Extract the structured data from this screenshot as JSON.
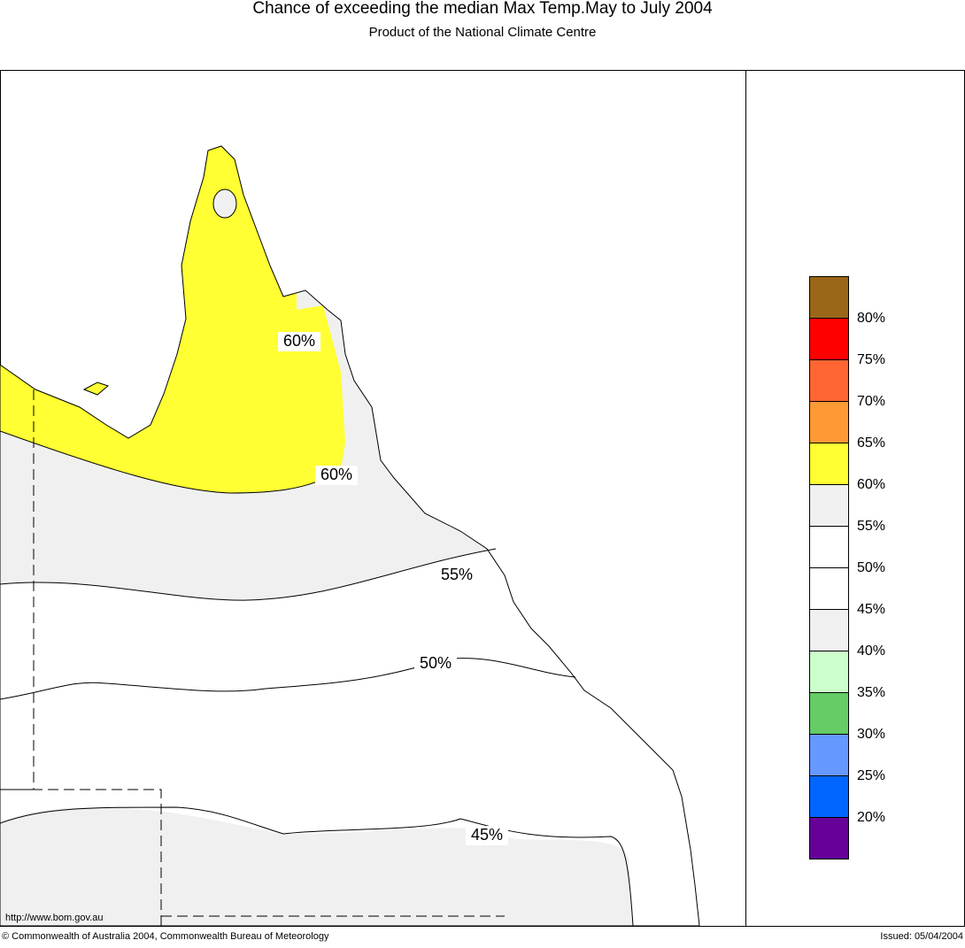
{
  "header": {
    "title": "Chance of exceeding the median Max Temp.May to July 2004",
    "subtitle": "Product of the National Climate Centre"
  },
  "map": {
    "url": "http://www.bom.gov.au",
    "contour_labels": [
      "60%",
      "60%",
      "55%",
      "50%",
      "45%"
    ]
  },
  "legend": {
    "colors": [
      "#9a6618",
      "#ff0000",
      "#ff6633",
      "#ff9933",
      "#ffff33",
      "#f0f0f0",
      "#ffffff",
      "#ffffff",
      "#f0f0f0",
      "#ccffcc",
      "#66cc66",
      "#6699ff",
      "#0066ff",
      "#660099"
    ],
    "labels": [
      "80%",
      "75%",
      "70%",
      "65%",
      "60%",
      "55%",
      "50%",
      "45%",
      "40%",
      "35%",
      "30%",
      "25%",
      "20%"
    ]
  },
  "footer": {
    "left": "© Commonwealth of Australia 2004, Commonwealth Bureau of Meteorology",
    "right": "Issued: 05/04/2004"
  }
}
